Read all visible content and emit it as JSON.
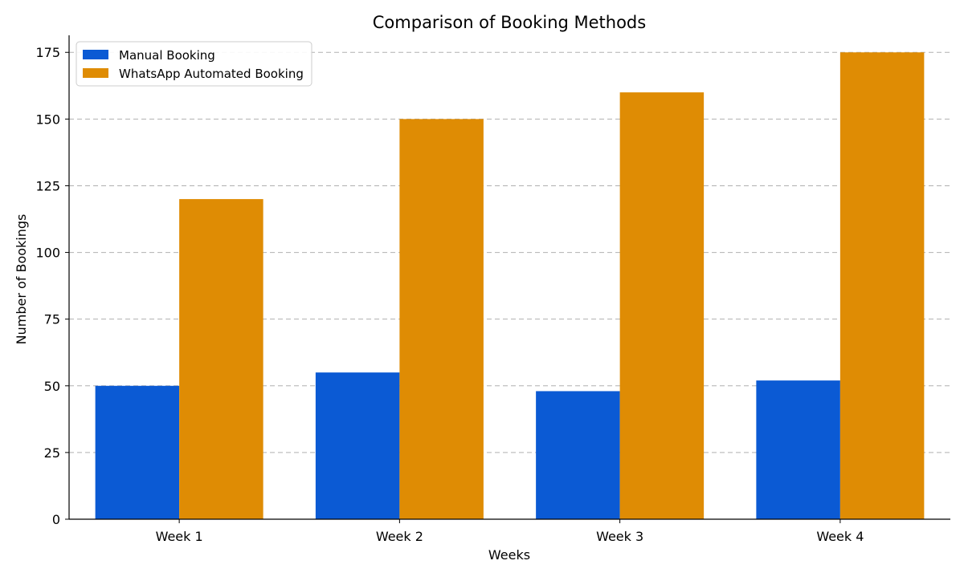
{
  "chart_data": {
    "type": "bar",
    "title": "Comparison of Booking Methods",
    "xlabel": "Weeks",
    "ylabel": "Number of Bookings",
    "categories": [
      "Week 1",
      "Week 2",
      "Week 3",
      "Week 4"
    ],
    "series": [
      {
        "name": "Manual Booking",
        "color": "#0b5ad4",
        "values": [
          50,
          55,
          48,
          52
        ]
      },
      {
        "name": "WhatsApp Automated Booking",
        "color": "#df8c04",
        "values": [
          120,
          150,
          160,
          175
        ]
      }
    ],
    "ylim": [
      0,
      185
    ],
    "yticks": [
      0,
      25,
      50,
      75,
      100,
      125,
      150,
      175
    ],
    "grid": "y-dashed",
    "legend_position": "top-left"
  }
}
